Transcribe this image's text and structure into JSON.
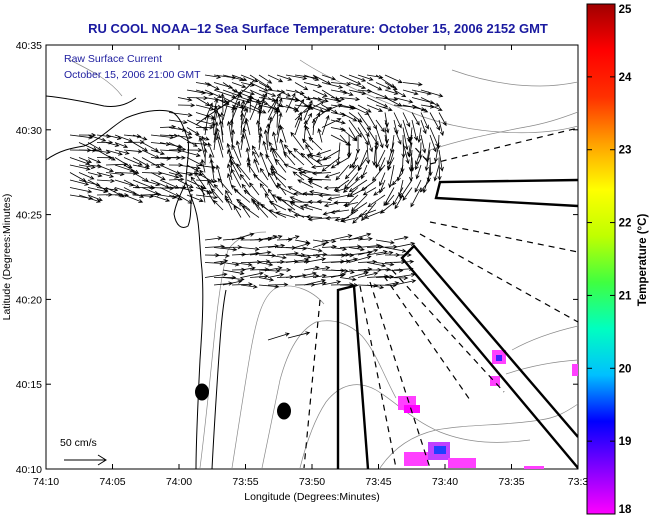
{
  "title": "RU COOL  NOAA–12  Sea Surface Temperature:  October 15, 2006 2152 GMT",
  "overlay": {
    "line1": "Raw Surface Current",
    "line2": "October 15, 2006 21:00 GMT"
  },
  "axes": {
    "xlabel": "Longitude (Degrees:Minutes)",
    "ylabel": "Latitude (Degrees:Minutes)",
    "xticks": [
      "74:10",
      "74:05",
      "74:00",
      "73:55",
      "73:50",
      "73:45",
      "73:40",
      "73:35",
      "73:3"
    ],
    "yticks": [
      "40:35",
      "40:30",
      "40:25",
      "40:20",
      "40:15",
      "40:10"
    ]
  },
  "scale_bar": {
    "label": "50 cm/s"
  },
  "colorbar": {
    "label": "Temperature (°C)",
    "ticks": [
      "25",
      "24",
      "23",
      "22",
      "21",
      "20",
      "19",
      "18"
    ],
    "min": 18,
    "max": 25,
    "colors": [
      "#ff00ff",
      "#8000ff",
      "#0000ff",
      "#00c0ff",
      "#00ffc0",
      "#40ff40",
      "#c0ff00",
      "#ffff00",
      "#ffa000",
      "#ff3000",
      "#ff0000",
      "#a00000"
    ]
  }
}
